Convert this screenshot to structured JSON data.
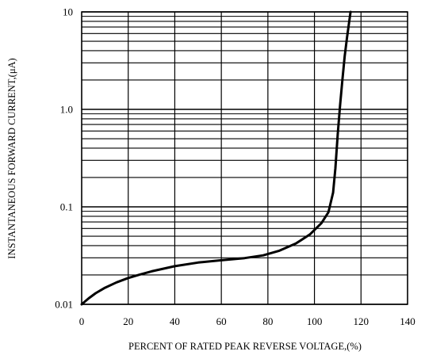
{
  "chart_data": {
    "type": "line",
    "title": "",
    "xlabel": "PERCENT OF RATED PEAK REVERSE VOLTAGE,(%)",
    "ylabel": "INSTANTANEOUS FORWARD CURRENT,(μA)",
    "xlim": [
      0,
      140
    ],
    "ylim": [
      0.01,
      10
    ],
    "yscale": "log",
    "grid": true,
    "x_ticks": [
      0,
      20,
      40,
      60,
      80,
      100,
      120,
      140
    ],
    "x_tick_labels": [
      "0",
      "20",
      "40",
      "60",
      "80",
      "100",
      "120",
      "140"
    ],
    "y_ticks": [
      0.01,
      0.1,
      1,
      10
    ],
    "y_tick_labels": [
      "0.01",
      "0.1",
      "1.0",
      "10"
    ],
    "colors": {
      "curve": "#000000",
      "grid": "#000000",
      "background": "#ffffff"
    },
    "series": [
      {
        "x": [
          0,
          3,
          6,
          10,
          15,
          20,
          25,
          30,
          40,
          50,
          60,
          70,
          78,
          85,
          92,
          98,
          103,
          106,
          108,
          109,
          110,
          111,
          112,
          113,
          114,
          115.5
        ],
        "y": [
          0.01,
          0.0115,
          0.013,
          0.0148,
          0.0168,
          0.0186,
          0.0202,
          0.0218,
          0.0246,
          0.0268,
          0.0283,
          0.0298,
          0.0318,
          0.0355,
          0.042,
          0.052,
          0.068,
          0.088,
          0.14,
          0.25,
          0.55,
          1.1,
          2.0,
          3.5,
          5.5,
          10
        ]
      }
    ]
  }
}
